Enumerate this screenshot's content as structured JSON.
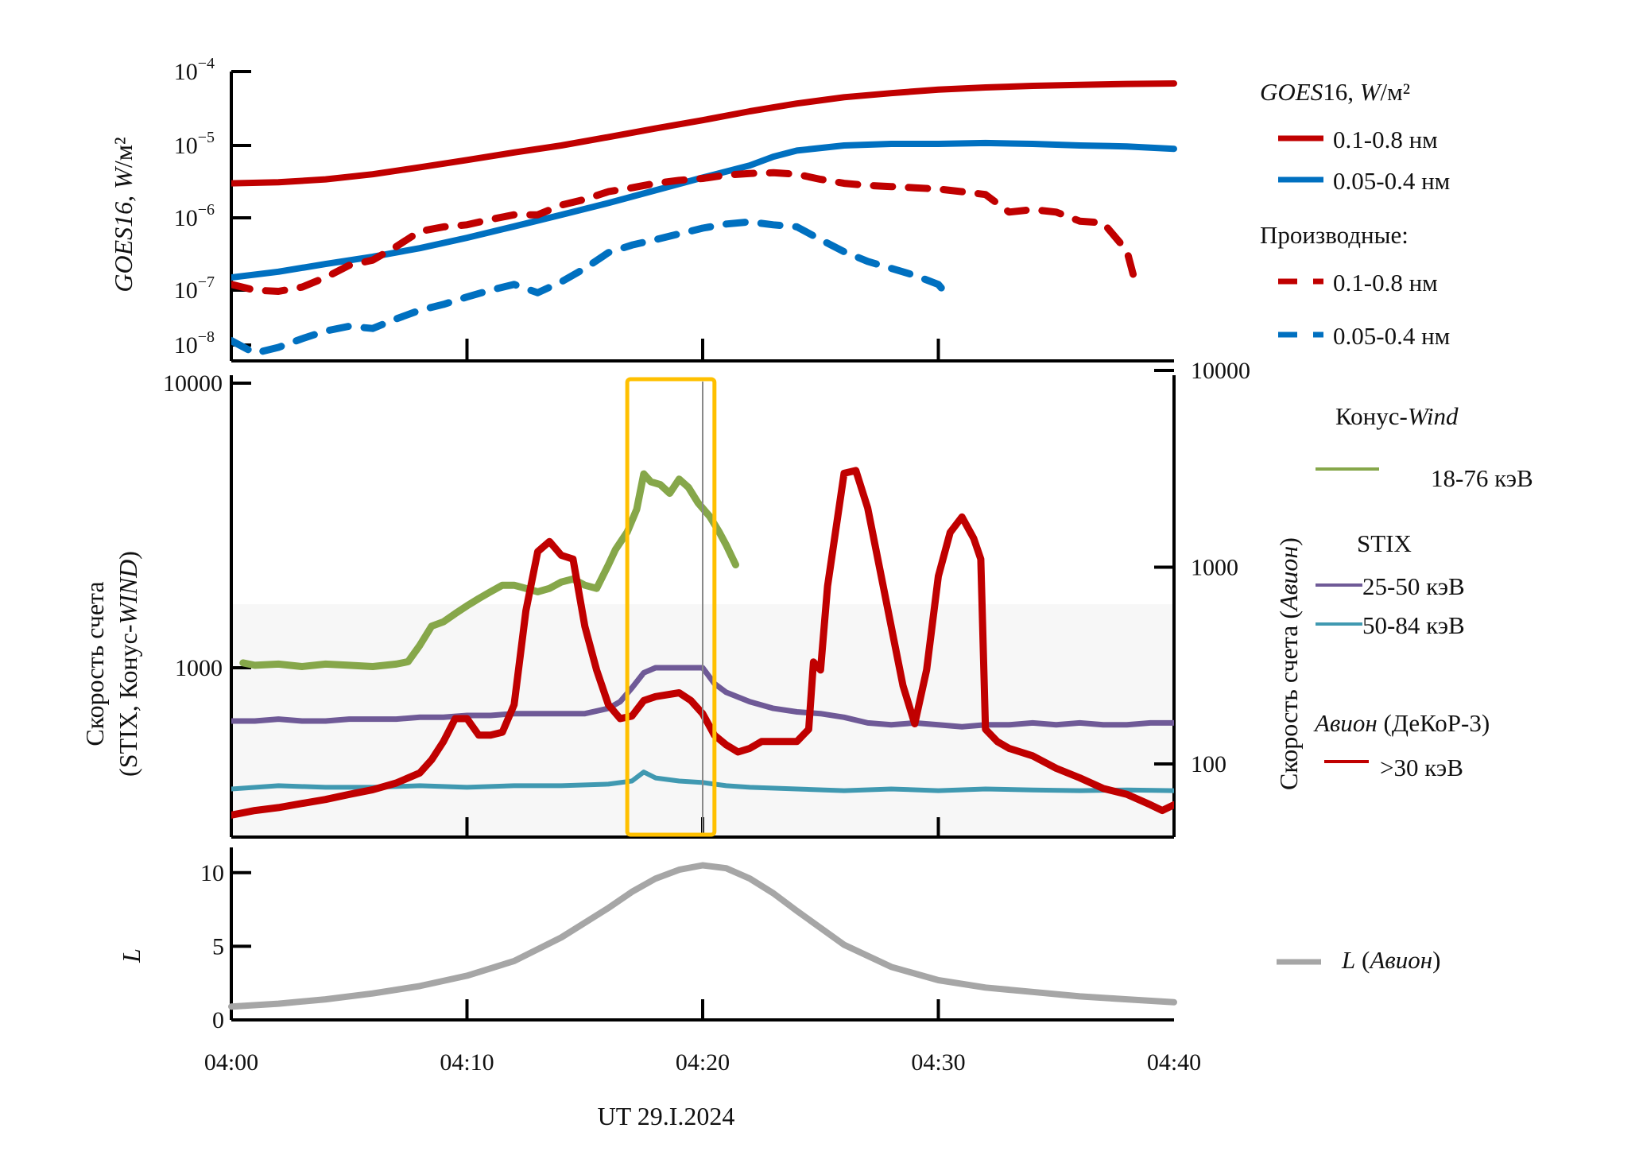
{
  "chart_data": [
    {
      "panel": "top",
      "type": "line",
      "ylabel": "GOES16, W/м²",
      "ylabel_parts": [
        {
          "t": "GOES16",
          "i": true
        },
        {
          "t": ", ",
          "i": false
        },
        {
          "t": "W",
          "i": true
        },
        {
          "t": "/м²",
          "i": false
        }
      ],
      "yscale": "log",
      "ylim": [
        1e-08,
        0.0001
      ],
      "yticks": [
        {
          "value": 0.0001,
          "base": "10",
          "exp": "−4"
        },
        {
          "value": 1e-05,
          "base": "10",
          "exp": "−5"
        },
        {
          "value": 1e-06,
          "base": "10",
          "exp": "−6"
        },
        {
          "value": 1e-07,
          "base": "10",
          "exp": "−7"
        },
        {
          "value": 1e-08,
          "base": "10",
          "exp": "−8"
        }
      ],
      "xlim_min": [
        0,
        40
      ],
      "legend": {
        "title_parts": [
          {
            "t": "GOES",
            "i": true
          },
          {
            "t": "16, ",
            "i": false
          },
          {
            "t": "W",
            "i": true
          },
          {
            "t": "/м²",
            "i": false
          }
        ],
        "subtitle": "Производные:",
        "position": "right"
      },
      "series": [
        {
          "name": "0.1-0.8 нм",
          "color": "#c00000",
          "style": "solid",
          "group": "flux",
          "x": [
            0,
            2,
            4,
            6,
            8,
            10,
            12,
            14,
            16,
            18,
            20,
            22,
            24,
            26,
            28,
            30,
            32,
            34,
            36,
            38,
            40
          ],
          "y": [
            3e-06,
            3.1e-06,
            3.4e-06,
            4e-06,
            5e-06,
            6.3e-06,
            8e-06,
            1e-05,
            1.3e-05,
            1.7e-05,
            2.2e-05,
            2.9e-05,
            3.7e-05,
            4.5e-05,
            5.1e-05,
            5.7e-05,
            6.1e-05,
            6.4e-05,
            6.6e-05,
            6.8e-05,
            6.9e-05
          ]
        },
        {
          "name": "0.05-0.4 нм",
          "color": "#0070c0",
          "style": "solid",
          "group": "flux",
          "x": [
            0,
            2,
            4,
            6,
            8,
            10,
            12,
            14,
            16,
            18,
            20,
            22,
            23,
            24,
            26,
            28,
            30,
            32,
            34,
            36,
            38,
            40
          ],
          "y": [
            1.5e-07,
            1.8e-07,
            2.3e-07,
            2.9e-07,
            3.8e-07,
            5.3e-07,
            7.6e-07,
            1.1e-06,
            1.6e-06,
            2.4e-06,
            3.6e-06,
            5.3e-06,
            7e-06,
            8.5e-06,
            1e-05,
            1.05e-05,
            1.05e-05,
            1.08e-05,
            1.05e-05,
            1e-05,
            9.7e-06,
            9e-06
          ]
        },
        {
          "name": "0.1-0.8 нм",
          "color": "#c00000",
          "style": "dashed",
          "group": "derivative",
          "x": [
            0,
            1,
            2,
            3,
            4,
            5,
            6,
            7,
            8,
            9,
            10,
            11,
            12,
            13,
            14,
            15,
            16,
            17,
            18,
            19,
            20,
            21,
            22,
            23,
            24,
            25,
            26,
            27,
            28,
            29,
            30,
            31,
            32,
            33,
            34,
            35,
            36,
            37,
            38,
            38.3
          ],
          "y": [
            1.2e-07,
            1e-07,
            9.5e-08,
            1.1e-07,
            1.5e-07,
            2.2e-07,
            2.6e-07,
            4e-07,
            6.5e-07,
            7.5e-07,
            8e-07,
            9.5e-07,
            1.1e-06,
            1.1e-06,
            1.5e-06,
            1.8e-06,
            2.3e-06,
            2.6e-06,
            3e-06,
            3.3e-06,
            3.5e-06,
            3.9e-06,
            4.1e-06,
            4.2e-06,
            4e-06,
            3.4e-06,
            3e-06,
            2.8e-06,
            2.7e-06,
            2.6e-06,
            2.5e-06,
            2.3e-06,
            2.1e-06,
            1.2e-06,
            1.3e-06,
            1.2e-06,
            9e-07,
            8.5e-07,
            3.5e-07,
            1.5e-07
          ]
        },
        {
          "name": "0.05-0.4 нм",
          "color": "#0070c0",
          "style": "dashed",
          "group": "derivative",
          "x": [
            0,
            1,
            2,
            3,
            4,
            5,
            6,
            7,
            8,
            9,
            10,
            11,
            12,
            13,
            14,
            15,
            16,
            17,
            18,
            19,
            20,
            21,
            22,
            23,
            24,
            25,
            26,
            27,
            28,
            29,
            30,
            30.3
          ],
          "y": [
            1.2e-08,
            7e-09,
            9e-09,
            1.3e-08,
            1.8e-08,
            2.2e-08,
            2e-08,
            3e-08,
            4.3e-08,
            5.5e-08,
            7.5e-08,
            1e-07,
            1.2e-07,
            9e-08,
            1.3e-07,
            2e-07,
            3.3e-07,
            4.2e-07,
            5e-07,
            6e-07,
            7.2e-07,
            8.2e-07,
            8.8e-07,
            8e-07,
            7.5e-07,
            5e-07,
            3.4e-07,
            2.5e-07,
            2e-07,
            1.6e-07,
            1.2e-07,
            9e-08
          ]
        }
      ]
    },
    {
      "panel": "middle",
      "type": "line",
      "ylabel_left_lines": [
        [
          {
            "t": "Скорость счета",
            "i": false
          }
        ],
        [
          {
            "t": "(STIX, Конус-",
            "i": false
          },
          {
            "t": "WIND",
            "i": true
          },
          {
            "t": ")",
            "i": false
          }
        ]
      ],
      "ylabel_right_parts": [
        {
          "t": "Скорость счета (",
          "i": false
        },
        {
          "t": "Авион",
          "i": true
        },
        {
          "t": ")",
          "i": false
        }
      ],
      "yscale_left": "log",
      "ylim_left": [
        300,
        10000
      ],
      "yticks_left": [
        {
          "value": 10000,
          "label": "10000"
        },
        {
          "value": 1000,
          "label": "1000"
        }
      ],
      "yscale_right": "log",
      "ylim_right": [
        45,
        10000
      ],
      "yticks_right": [
        {
          "value": 10000,
          "label": "10000"
        },
        {
          "value": 1000,
          "label": "1000"
        },
        {
          "value": 100,
          "label": "100"
        }
      ],
      "highlight_box": {
        "x_from_min": 16.8,
        "x_to_min": 20.5,
        "color": "#ffc000",
        "marker_min": 20.0
      },
      "legend": {
        "groups": [
          {
            "title_parts": [
              {
                "t": "Конус-",
                "i": false
              },
              {
                "t": "Wind",
                "i": true
              }
            ],
            "items": [
              "18-76 кэВ"
            ]
          },
          {
            "title_parts": [
              {
                "t": "STIX",
                "i": false
              }
            ],
            "items": [
              "25-50 кэВ",
              "50-84 кэВ"
            ]
          },
          {
            "title_parts": [
              {
                "t": "Авион",
                "i": true
              },
              {
                "t": " (ДеКоР-3)",
                "i": false
              }
            ],
            "items": [
              ">30 кэВ"
            ]
          }
        ],
        "position": "right"
      },
      "series": [
        {
          "name": "Конус-Wind 18-76 кэВ",
          "color": "#86a74a",
          "axis": "left",
          "width": 9,
          "x": [
            0.5,
            1,
            2,
            3,
            4,
            5,
            6,
            7,
            7.5,
            8,
            8.5,
            9,
            9.5,
            10,
            10.5,
            11,
            11.5,
            12,
            12.5,
            13,
            13.5,
            14,
            14.5,
            15,
            15.5,
            16,
            16.3,
            16.8,
            17.2,
            17.5,
            17.8,
            18.2,
            18.6,
            19,
            19.4,
            19.8,
            20.3,
            20.7,
            21,
            21.4
          ],
          "y": [
            1040,
            1020,
            1030,
            1010,
            1030,
            1020,
            1010,
            1030,
            1050,
            1200,
            1400,
            1450,
            1550,
            1650,
            1750,
            1850,
            1950,
            1950,
            1900,
            1850,
            1900,
            2000,
            2050,
            1950,
            1900,
            2300,
            2600,
            3000,
            3600,
            4800,
            4500,
            4400,
            4100,
            4600,
            4300,
            3800,
            3400,
            3000,
            2700,
            2300
          ]
        },
        {
          "name": "STIX 25-50 кэВ",
          "color": "#6f5a97",
          "axis": "left",
          "width": 7,
          "x": [
            0,
            1,
            2,
            3,
            4,
            5,
            6,
            7,
            8,
            9,
            10,
            11,
            12,
            13,
            14,
            15,
            16,
            16.5,
            17,
            17.5,
            18,
            19,
            20,
            20.5,
            21,
            22,
            23,
            24,
            25,
            26,
            27,
            28,
            29,
            30,
            31,
            32,
            33,
            34,
            35,
            36,
            37,
            38,
            39,
            40
          ],
          "y": [
            650,
            650,
            660,
            650,
            650,
            660,
            660,
            660,
            670,
            670,
            680,
            680,
            690,
            690,
            690,
            690,
            720,
            760,
            850,
            960,
            1000,
            1000,
            1000,
            880,
            820,
            760,
            720,
            700,
            690,
            670,
            640,
            630,
            640,
            630,
            620,
            630,
            630,
            640,
            630,
            640,
            630,
            630,
            640,
            640
          ]
        },
        {
          "name": "STIX 50-84 кэВ",
          "color": "#4099b1",
          "axis": "left",
          "width": 6,
          "x": [
            0,
            2,
            4,
            6,
            8,
            10,
            12,
            14,
            16,
            17,
            17.5,
            18,
            19,
            20,
            21,
            22,
            24,
            26,
            28,
            30,
            32,
            34,
            36,
            38,
            40
          ],
          "y": [
            375,
            385,
            380,
            380,
            385,
            380,
            385,
            385,
            390,
            400,
            430,
            410,
            400,
            395,
            385,
            380,
            375,
            370,
            375,
            370,
            375,
            372,
            370,
            372,
            370
          ]
        },
        {
          "name": "Авион >30 кэВ",
          "color": "#c00000",
          "axis": "right",
          "width": 9,
          "x": [
            0,
            1,
            2,
            3,
            4,
            5,
            6,
            7,
            8,
            8.5,
            9,
            9.5,
            10,
            10.5,
            11,
            11.5,
            12,
            12.5,
            13,
            13.5,
            14,
            14.5,
            15,
            15.5,
            16,
            16.5,
            17,
            17.5,
            18,
            19,
            19.5,
            20,
            20.5,
            21,
            21.5,
            22,
            22.5,
            23,
            24,
            24.5,
            24.7,
            25,
            25.3,
            26,
            26.5,
            27,
            27.5,
            28,
            28.5,
            29,
            29.5,
            30,
            30.5,
            31,
            31.5,
            31.8,
            32,
            32.5,
            33,
            34,
            35,
            36,
            37,
            38,
            39,
            39.5,
            40
          ],
          "y": [
            55,
            58,
            60,
            63,
            66,
            70,
            74,
            80,
            90,
            105,
            130,
            170,
            170,
            140,
            140,
            145,
            200,
            600,
            1200,
            1350,
            1150,
            1100,
            500,
            300,
            200,
            170,
            175,
            210,
            220,
            230,
            210,
            180,
            140,
            125,
            115,
            120,
            130,
            130,
            130,
            150,
            330,
            300,
            800,
            3000,
            3100,
            2000,
            1000,
            500,
            250,
            160,
            300,
            900,
            1500,
            1800,
            1400,
            1100,
            150,
            130,
            120,
            110,
            95,
            85,
            75,
            70,
            62,
            58,
            62
          ]
        }
      ]
    },
    {
      "panel": "bottom",
      "type": "line",
      "ylabel": "L",
      "ylim": [
        0,
        11.5
      ],
      "yticks": [
        {
          "value": 10,
          "label": "10"
        },
        {
          "value": 5,
          "label": "5"
        },
        {
          "value": 0,
          "label": "0"
        }
      ],
      "xlim_min": [
        0,
        40
      ],
      "xticks": [
        {
          "value": 0,
          "label": "04:00"
        },
        {
          "value": 10,
          "label": "04:10"
        },
        {
          "value": 20,
          "label": "04:20"
        },
        {
          "value": 30,
          "label": "04:30"
        },
        {
          "value": 40,
          "label": "04:40"
        }
      ],
      "xlabel": "UT 29.I.2024",
      "legend": {
        "label_parts": [
          {
            "t": "L",
            "i": true
          },
          {
            "t": " (",
            "i": false
          },
          {
            "t": "Авион",
            "i": true
          },
          {
            "t": ")",
            "i": false
          }
        ],
        "position": "right"
      },
      "series": [
        {
          "name": "L (Авион)",
          "color": "#a6a6a6",
          "x": [
            0,
            2,
            4,
            6,
            8,
            10,
            12,
            14,
            16,
            17,
            18,
            19,
            20,
            21,
            22,
            23,
            24,
            26,
            28,
            30,
            32,
            34,
            36,
            38,
            40
          ],
          "y": [
            0.9,
            1.1,
            1.4,
            1.8,
            2.3,
            3.0,
            4.0,
            5.6,
            7.6,
            8.7,
            9.6,
            10.2,
            10.5,
            10.3,
            9.6,
            8.6,
            7.4,
            5.1,
            3.6,
            2.7,
            2.2,
            1.9,
            1.6,
            1.4,
            1.2
          ]
        }
      ]
    }
  ]
}
